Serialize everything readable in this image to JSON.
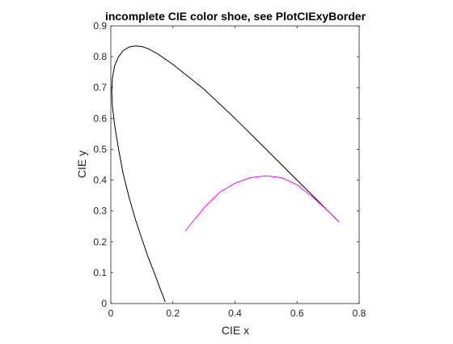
{
  "chart_data": {
    "type": "line",
    "title": "incomplete CIE color shoe, see PlotCIExyBorder",
    "xlabel": "CIE x",
    "ylabel": "CIE y",
    "xlim": [
      0,
      0.8
    ],
    "ylim": [
      0,
      0.9
    ],
    "grid": false,
    "aspect": "equal",
    "xticks": [
      0,
      0.2,
      0.4,
      0.6,
      0.8
    ],
    "yticks": [
      0,
      0.1,
      0.2,
      0.3,
      0.4,
      0.5,
      0.6,
      0.7,
      0.8,
      0.9
    ],
    "xtick_labels": [
      "0",
      "0.2",
      "0.4",
      "0.6",
      "0.8"
    ],
    "ytick_labels": [
      "0",
      "0.1",
      "0.2",
      "0.3",
      "0.4",
      "0.5",
      "0.6",
      "0.7",
      "0.8",
      "0.9"
    ],
    "series": [
      {
        "color": "#000000",
        "x": [
          0.175,
          0.17,
          0.16,
          0.14,
          0.12,
          0.1,
          0.08,
          0.06,
          0.04,
          0.025,
          0.012,
          0.005,
          0.003,
          0.005,
          0.012,
          0.025,
          0.04,
          0.06,
          0.08,
          0.1,
          0.12,
          0.15,
          0.2,
          0.3,
          0.4,
          0.5,
          0.6,
          0.65,
          0.7,
          0.735
        ],
        "y": [
          0.005,
          0.02,
          0.045,
          0.1,
          0.15,
          0.21,
          0.27,
          0.34,
          0.42,
          0.5,
          0.58,
          0.64,
          0.69,
          0.73,
          0.77,
          0.8,
          0.82,
          0.832,
          0.835,
          0.833,
          0.826,
          0.81,
          0.775,
          0.695,
          0.6,
          0.5,
          0.4,
          0.35,
          0.3,
          0.265
        ]
      },
      {
        "color": "#ff00ff",
        "x": [
          0.24,
          0.3,
          0.35,
          0.4,
          0.45,
          0.5,
          0.55,
          0.6,
          0.65,
          0.7,
          0.735
        ],
        "y": [
          0.235,
          0.31,
          0.36,
          0.39,
          0.408,
          0.414,
          0.408,
          0.385,
          0.345,
          0.3,
          0.265
        ]
      }
    ]
  }
}
